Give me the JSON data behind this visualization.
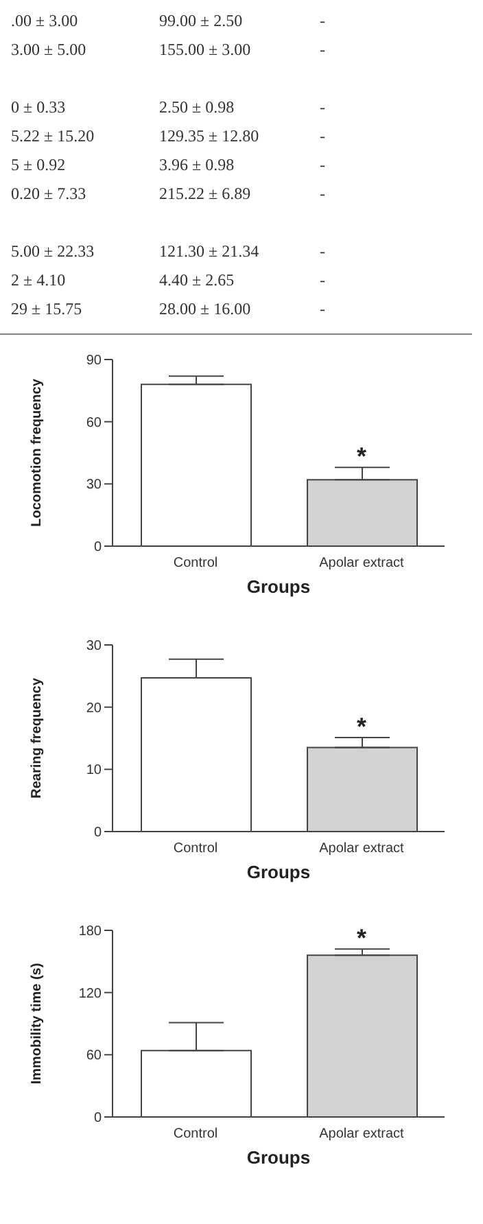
{
  "chart_data": [
    {
      "type": "other",
      "annotations": [
        ".00 ± 3.00",
        "99.00 ± 2.50",
        "-",
        "3.00 ± 5.00",
        "155.00 ± 3.00",
        "-",
        "0 ± 0.33",
        "2.50 ± 0.98",
        "-",
        "5.22 ± 15.20",
        "129.35 ± 12.80",
        "-",
        "5 ± 0.92",
        "3.96 ± 0.98",
        "-",
        "0.20 ± 7.33",
        "215.22 ± 6.89",
        "-",
        "5.00 ± 22.33",
        "121.30 ± 21.34",
        "-",
        "2 ± 4.10",
        "4.40 ± 2.65",
        "-",
        "29 ± 15.75",
        "28.00 ± 16.00",
        "-"
      ]
    },
    {
      "type": "bar",
      "categories": [
        "Control",
        "Apolar extract"
      ],
      "values": [
        78,
        32
      ],
      "errors": [
        [
          78,
          82
        ],
        [
          32,
          38
        ]
      ],
      "colors": [
        "#ffffff",
        "#d3d3d3"
      ],
      "xlabel": "Groups",
      "ylabel": "Locomotion frequency",
      "ylim": [
        0,
        90
      ],
      "yticks": [
        0,
        30,
        60,
        90
      ],
      "annotations": [
        {
          "text": "*",
          "x": "Apolar extract",
          "y": 38
        }
      ]
    },
    {
      "type": "bar",
      "categories": [
        "Control",
        "Apolar extract"
      ],
      "values": [
        24.7,
        13.5
      ],
      "errors": [
        [
          24.7,
          27.7
        ],
        [
          13.5,
          15.1
        ]
      ],
      "colors": [
        "#ffffff",
        "#d3d3d3"
      ],
      "xlabel": "Groups",
      "ylabel": "Rearing frequency",
      "ylim": [
        0,
        30
      ],
      "yticks": [
        0,
        10,
        20,
        30
      ],
      "annotations": [
        {
          "text": "*",
          "x": "Apolar extract",
          "y": 15.1
        }
      ]
    },
    {
      "type": "bar",
      "categories": [
        "Control",
        "Apolar extract"
      ],
      "values": [
        64,
        156
      ],
      "errors": [
        [
          64,
          91
        ],
        [
          156,
          162
        ]
      ],
      "colors": [
        "#ffffff",
        "#d3d3d3"
      ],
      "xlabel": "Groups",
      "ylabel": "Immobility time (s)",
      "ylim": [
        0,
        180
      ],
      "yticks": [
        0,
        60,
        120,
        180
      ],
      "annotations": [
        {
          "text": "*",
          "x": "Apolar extract",
          "y": 162
        }
      ]
    }
  ]
}
